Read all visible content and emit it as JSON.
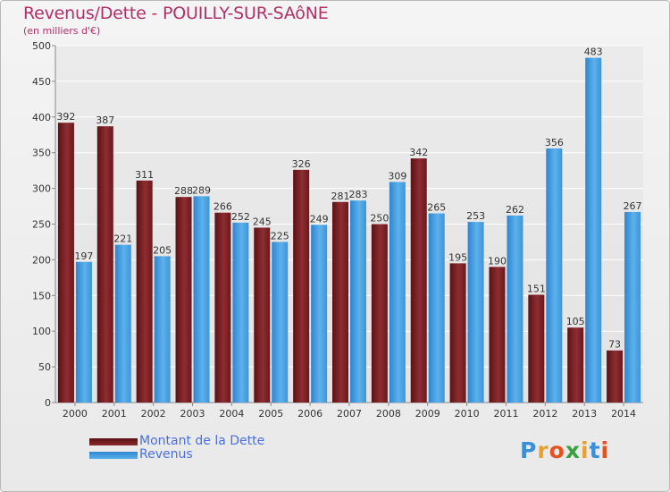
{
  "title": "Revenus/Dette - POUILLY-SUR-SAôNE",
  "subtitle": "(en milliers d'€)",
  "legend": {
    "dette": "Montant de la Dette",
    "revenus": "Revenus"
  },
  "logo": {
    "letters": [
      "P",
      "r",
      "o",
      "x",
      "i",
      "t",
      "i"
    ],
    "colors": [
      "#3a8fd8",
      "#e8a030",
      "#e85020",
      "#3aa040",
      "#e8a030",
      "#3a8fd8",
      "#e85020"
    ]
  },
  "colors": {
    "dette": "#7a1f23",
    "revenus": "#4aa3e8"
  },
  "chart_data": {
    "type": "bar",
    "title": "Revenus/Dette - POUILLY-SUR-SAôNE",
    "ylabel": "(en milliers d'€)",
    "ylim": [
      0,
      500
    ],
    "yticks": [
      0,
      50,
      100,
      150,
      200,
      250,
      300,
      350,
      400,
      450,
      500
    ],
    "grid": true,
    "legend_position": "bottom-left",
    "categories": [
      "2000",
      "2001",
      "2002",
      "2003",
      "2004",
      "2005",
      "2006",
      "2007",
      "2008",
      "2009",
      "2010",
      "2011",
      "2012",
      "2013",
      "2014"
    ],
    "series": [
      {
        "name": "Montant de la Dette",
        "values": [
          392,
          387,
          311,
          288,
          266,
          245,
          326,
          281,
          250,
          342,
          195,
          190,
          151,
          105,
          73
        ]
      },
      {
        "name": "Revenus",
        "values": [
          197,
          221,
          205,
          289,
          252,
          225,
          249,
          283,
          309,
          265,
          253,
          262,
          356,
          483,
          267
        ]
      }
    ]
  }
}
